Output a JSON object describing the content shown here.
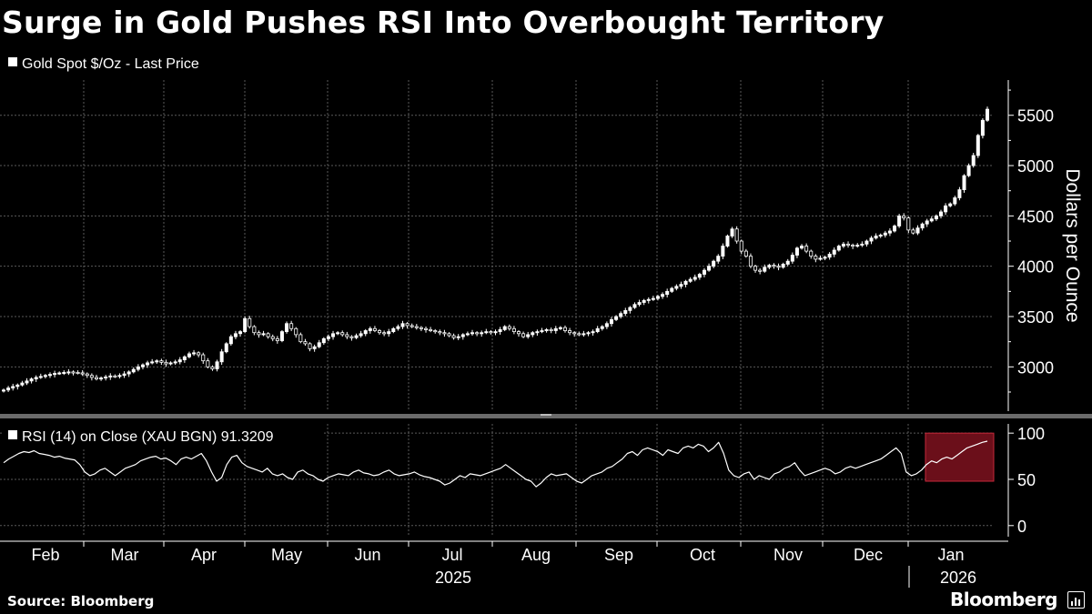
{
  "title": "Surge in Gold Pushes RSI Into Overbought Territory",
  "source": "Source: Bloomberg",
  "brand": "Bloomberg",
  "brand_icon": "bloomberg-terminal-icon",
  "colors": {
    "background": "#000000",
    "line": "#ffffff",
    "grid": "#5a5a5a",
    "highlight_fill": "#6b0f1a",
    "highlight_stroke": "#c4283a"
  },
  "chart_data": [
    {
      "type": "candlestick",
      "legend": "Gold Spot $/Oz - Last Price",
      "ylabel": "Dollars per Ounce",
      "yticks": [
        3000,
        3500,
        4000,
        4500,
        5000,
        5500
      ],
      "ylim": [
        2560,
        5850
      ],
      "grid": true,
      "axis_side": "right",
      "approx_daily_close": [
        2770,
        2790,
        2805,
        2820,
        2840,
        2860,
        2880,
        2895,
        2905,
        2915,
        2925,
        2935,
        2940,
        2945,
        2950,
        2945,
        2940,
        2930,
        2915,
        2895,
        2880,
        2890,
        2900,
        2910,
        2905,
        2915,
        2930,
        2950,
        2975,
        3000,
        3020,
        3040,
        3050,
        3060,
        3045,
        3030,
        3040,
        3050,
        3070,
        3100,
        3130,
        3140,
        3120,
        3060,
        3000,
        2980,
        3050,
        3150,
        3230,
        3300,
        3330,
        3350,
        3480,
        3400,
        3340,
        3320,
        3330,
        3300,
        3280,
        3260,
        3350,
        3430,
        3380,
        3320,
        3250,
        3230,
        3180,
        3200,
        3240,
        3280,
        3300,
        3330,
        3340,
        3320,
        3300,
        3290,
        3310,
        3330,
        3360,
        3380,
        3360,
        3340,
        3330,
        3350,
        3380,
        3400,
        3430,
        3410,
        3400,
        3390,
        3380,
        3370,
        3360,
        3350,
        3340,
        3330,
        3310,
        3290,
        3300,
        3320,
        3330,
        3340,
        3330,
        3340,
        3350,
        3340,
        3350,
        3370,
        3400,
        3380,
        3350,
        3330,
        3300,
        3320,
        3340,
        3350,
        3360,
        3370,
        3360,
        3380,
        3390,
        3360,
        3340,
        3330,
        3320,
        3330,
        3340,
        3350,
        3380,
        3400,
        3430,
        3470,
        3500,
        3530,
        3560,
        3590,
        3620,
        3640,
        3660,
        3670,
        3680,
        3700,
        3720,
        3750,
        3780,
        3800,
        3820,
        3850,
        3870,
        3890,
        3920,
        3960,
        4000,
        4050,
        4100,
        4200,
        4300,
        4370,
        4250,
        4150,
        4100,
        4000,
        3960,
        3950,
        3990,
        4010,
        4000,
        3990,
        4020,
        4050,
        4110,
        4180,
        4200,
        4150,
        4100,
        4070,
        4080,
        4090,
        4120,
        4160,
        4200,
        4220,
        4210,
        4200,
        4210,
        4220,
        4250,
        4280,
        4300,
        4310,
        4330,
        4350,
        4400,
        4500,
        4480,
        4360,
        4330,
        4380,
        4420,
        4450,
        4470,
        4500,
        4540,
        4600,
        4620,
        4680,
        4760,
        4900,
        5000,
        5100,
        5300,
        5450,
        5560
      ]
    },
    {
      "type": "line",
      "legend": "RSI (14)  on Close (XAU BGN) 91.3209",
      "last_value": 91.3209,
      "yticks": [
        0,
        50,
        100
      ],
      "ylim": [
        -12,
        110
      ],
      "grid": true,
      "axis_side": "right",
      "highlight_zone": {
        "rsi_range": [
          48,
          100
        ],
        "start_month": "Jan",
        "end_date": "latest"
      },
      "approx_daily_values": [
        68,
        72,
        75,
        78,
        80,
        79,
        81,
        78,
        77,
        76,
        74,
        75,
        73,
        72,
        71,
        66,
        58,
        54,
        56,
        60,
        62,
        58,
        54,
        58,
        62,
        64,
        66,
        70,
        72,
        74,
        75,
        72,
        73,
        70,
        66,
        72,
        74,
        72,
        75,
        78,
        70,
        58,
        48,
        52,
        66,
        74,
        76,
        68,
        64,
        62,
        60,
        58,
        62,
        56,
        54,
        56,
        52,
        50,
        58,
        60,
        56,
        54,
        50,
        48,
        52,
        54,
        56,
        55,
        54,
        58,
        60,
        57,
        56,
        54,
        55,
        58,
        60,
        56,
        54,
        55,
        56,
        58,
        55,
        53,
        52,
        50,
        48,
        44,
        46,
        50,
        54,
        52,
        56,
        55,
        54,
        56,
        58,
        60,
        62,
        66,
        62,
        58,
        54,
        50,
        48,
        42,
        46,
        52,
        56,
        54,
        55,
        56,
        52,
        48,
        46,
        50,
        54,
        56,
        58,
        62,
        64,
        68,
        72,
        78,
        80,
        76,
        82,
        84,
        82,
        80,
        76,
        82,
        80,
        78,
        84,
        86,
        84,
        88,
        86,
        80,
        84,
        90,
        78,
        60,
        54,
        52,
        56,
        58,
        50,
        54,
        52,
        50,
        56,
        58,
        62,
        64,
        68,
        60,
        54,
        56,
        58,
        60,
        62,
        60,
        56,
        58,
        62,
        64,
        62,
        64,
        66,
        68,
        70,
        72,
        76,
        80,
        84,
        78,
        58,
        54,
        56,
        60,
        66,
        70,
        68,
        72,
        74,
        72,
        76,
        80,
        84,
        86,
        88,
        90,
        91.3209
      ]
    },
    {
      "type": "time_axis",
      "months": [
        "Feb",
        "Mar",
        "Apr",
        "May",
        "Jun",
        "Jul",
        "Aug",
        "Sep",
        "Oct",
        "Nov",
        "Dec",
        "Jan"
      ],
      "years": [
        "2025",
        "2026"
      ]
    }
  ]
}
